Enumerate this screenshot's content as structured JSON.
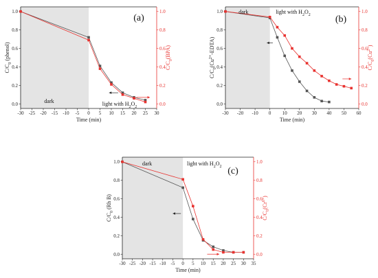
{
  "chart_data": [
    {
      "type": "line",
      "panel_label": "(a)",
      "xlabel": "Time (min)",
      "ylabel": "C/C0 (phenol)",
      "ylabel_parts": {
        "main": "C/C",
        "sub": "0",
        "rest": " (phenol)"
      },
      "y2label": "C/C0(BPA)",
      "y2label_parts": {
        "main": "C/C",
        "sub": "0",
        "rest": "(BPA)"
      },
      "xlim": [
        -30,
        30
      ],
      "ylim": [
        -0.05,
        1.05
      ],
      "y2lim": [
        -0.05,
        1.05
      ],
      "xticks": [
        "-30",
        "-25",
        "-20",
        "-15",
        "-10",
        "-5",
        "0",
        "5",
        "10",
        "15",
        "20",
        "25",
        "30"
      ],
      "yticks": [
        "0.0",
        "0.2",
        "0.4",
        "0.6",
        "0.8",
        "1.0"
      ],
      "y2ticks": [
        "0.0",
        "0.2",
        "0.4",
        "0.6",
        "0.8",
        "1.0"
      ],
      "dark_region": [
        -30,
        0
      ],
      "dark_label": "dark",
      "light_label": {
        "main": "light with H",
        "sub": "2",
        "mid": "O",
        "sub2": "2"
      },
      "series": [
        {
          "axis": "left",
          "color": "#555555",
          "marker": "square",
          "x": [
            -30,
            0,
            5,
            10,
            15,
            20,
            25
          ],
          "y": [
            1.0,
            0.72,
            0.41,
            0.23,
            0.12,
            0.07,
            0.04
          ]
        },
        {
          "axis": "right",
          "color": "#e8322f",
          "marker": "square",
          "x": [
            -30,
            0,
            5,
            10,
            15,
            20,
            25
          ],
          "y": [
            1.0,
            0.69,
            0.38,
            0.21,
            0.1,
            0.06,
            0.02
          ]
        }
      ],
      "arrows": [
        {
          "from": [
            13,
            0.12
          ],
          "to": [
            9,
            0.12
          ]
        },
        {
          "from": [
            21,
            0.07
          ],
          "to": [
            27,
            0.07
          ]
        }
      ]
    },
    {
      "type": "line",
      "panel_label": "(b)",
      "xlabel": "Time (min)",
      "ylabel": "C/C0(Cu2+-EDTA)",
      "ylabel_parts": {
        "main": "C/C",
        "sub": "0",
        "rest": "(Cu",
        "sup": "2+",
        "rest2": "-EDTA)"
      },
      "y2label": "C/C0(Cu2+)",
      "y2label_parts": {
        "main": "C/C",
        "sub": "0",
        "rest": "(Cu",
        "sup": "2+",
        "rest2": ")"
      },
      "xlim": [
        -30,
        60
      ],
      "ylim": [
        -0.05,
        1.05
      ],
      "y2lim": [
        -0.05,
        1.05
      ],
      "xticks": [
        "-30",
        "-20",
        "-10",
        "0",
        "10",
        "20",
        "30",
        "40",
        "50",
        "60"
      ],
      "yticks": [
        "0.0",
        "0.2",
        "0.4",
        "0.6",
        "0.8",
        "1.0"
      ],
      "y2ticks": [
        "0.0",
        "0.2",
        "0.4",
        "0.6",
        "0.8",
        "1.0"
      ],
      "dark_region": [
        -30,
        0
      ],
      "dark_label": "dark",
      "light_label": {
        "main": "light with H",
        "sub": "2",
        "mid": "O",
        "sub2": "2"
      },
      "series": [
        {
          "axis": "left",
          "color": "#555555",
          "marker": "square",
          "x": [
            -30,
            0,
            5,
            10,
            15,
            20,
            25,
            30,
            35,
            40
          ],
          "y": [
            1.0,
            0.93,
            0.72,
            0.52,
            0.36,
            0.24,
            0.14,
            0.07,
            0.03,
            0.02
          ]
        },
        {
          "axis": "right",
          "color": "#e8322f",
          "marker": "square",
          "x": [
            -30,
            0,
            5,
            10,
            15,
            20,
            25,
            30,
            35,
            40,
            45,
            50,
            55
          ],
          "y": [
            1.0,
            0.94,
            0.83,
            0.74,
            0.6,
            0.51,
            0.44,
            0.36,
            0.3,
            0.25,
            0.21,
            0.19,
            0.17
          ]
        }
      ],
      "arrows": [
        {
          "from": [
            2,
            0.66
          ],
          "to": [
            -2,
            0.66
          ]
        },
        {
          "from": [
            49,
            0.27
          ],
          "to": [
            55,
            0.27
          ]
        }
      ]
    },
    {
      "type": "line",
      "panel_label": "(c)",
      "xlabel": "Time (min)",
      "ylabel": "C/C0 (Rh B)",
      "ylabel_parts": {
        "main": "C/C",
        "sub": "0",
        "rest": " (Rh B)"
      },
      "y2label": "C/C0(Cr6+)",
      "y2label_parts": {
        "main": "C/C",
        "sub": "0",
        "rest": "(Cr",
        "sup": "6+",
        "rest2": ")"
      },
      "xlim": [
        -30,
        35
      ],
      "ylim": [
        -0.05,
        1.05
      ],
      "y2lim": [
        -0.05,
        1.05
      ],
      "xticks": [
        "-30",
        "-25",
        "-20",
        "-15",
        "-10",
        "-5",
        "0",
        "5",
        "10",
        "15",
        "20",
        "25",
        "30",
        "35"
      ],
      "yticks": [
        "0.0",
        "0.2",
        "0.4",
        "0.6",
        "0.8",
        "1.0"
      ],
      "y2ticks": [
        "0.0",
        "0.2",
        "0.4",
        "0.6",
        "0.8",
        "1.0"
      ],
      "dark_region": [
        -30,
        0
      ],
      "dark_label": "dark",
      "light_label": {
        "main": "light with H",
        "sub": "2",
        "mid": "O",
        "sub2": "2"
      },
      "series": [
        {
          "axis": "left",
          "color": "#555555",
          "marker": "square",
          "x": [
            -30,
            0,
            5,
            10,
            15,
            20,
            25,
            30
          ],
          "y": [
            1.0,
            0.72,
            0.38,
            0.15,
            0.08,
            0.04,
            0.02,
            0.02
          ]
        },
        {
          "axis": "right",
          "color": "#e8322f",
          "marker": "square",
          "x": [
            -30,
            0,
            5,
            10,
            15,
            20,
            25,
            30
          ],
          "y": [
            1.0,
            0.81,
            0.52,
            0.16,
            0.05,
            0.02,
            0.02,
            0.02
          ]
        }
      ],
      "arrows": [
        {
          "from": [
            -1,
            0.44
          ],
          "to": [
            -5,
            0.44
          ]
        },
        {
          "from": [
            12,
            0.0
          ],
          "to": [
            18,
            0.0
          ]
        }
      ]
    }
  ]
}
